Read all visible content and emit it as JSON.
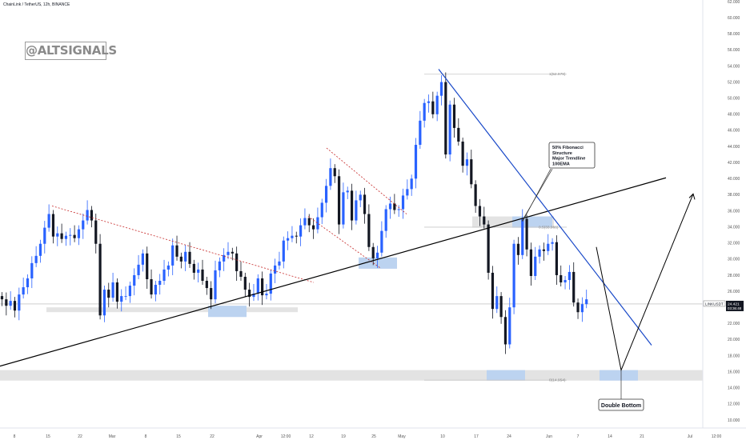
{
  "header": {
    "pair_title": "ChainLink / TetherUS, 12h, BINANCE"
  },
  "watermark": "@ALTSIGNALS",
  "annotations": {
    "confluence": [
      "50% Fibonacci",
      "Structure",
      "Major Trendline",
      "100EMA"
    ],
    "double_bottom": "Double Bottom",
    "fib_top": "1(52.979)",
    "fib_mid": "0.5(33.966)",
    "fib_bottom": "0(14.954)"
  },
  "price_tag": {
    "symbol": "LINKUSDT",
    "price": "24.421",
    "countdown": "03:36:48"
  },
  "colors": {
    "up": "#2962ff",
    "down": "#131722",
    "trendline_blue": "#1848c8",
    "trendline_black": "#000000",
    "zone_gray": "#e3e3e3",
    "zone_blue": "#bcd3f0",
    "dashed_red": "#c62828"
  },
  "chart_data": {
    "type": "candlestick",
    "y_axis": {
      "min": 10,
      "max": 62,
      "step": 2,
      "tick_labels": [
        "62.000",
        "60.000",
        "58.000",
        "56.000",
        "54.000",
        "52.000",
        "50.000",
        "48.000",
        "46.000",
        "44.000",
        "42.000",
        "40.000",
        "38.000",
        "36.000",
        "34.000",
        "32.000",
        "30.000",
        "28.000",
        "26.000",
        "24.000",
        "22.000",
        "20.000",
        "18.000",
        "16.000",
        "14.000",
        "12.000",
        "10.000"
      ]
    },
    "x_axis": {
      "tick_labels": [
        "8",
        "15",
        "22",
        "Mar",
        "8",
        "15",
        "22",
        "Apr",
        "12:00",
        "12",
        "19",
        "25",
        "May",
        "10",
        "17",
        "24",
        "Jun",
        "7",
        "14",
        "21",
        "Jul",
        "12:00"
      ]
    },
    "close_series": [
      25.0,
      24.2,
      24.8,
      23.6,
      25.6,
      26.5,
      27.6,
      29.5,
      30.4,
      31.9,
      33.9,
      35.6,
      32.8,
      33.2,
      32.5,
      32.9,
      33.0,
      32.6,
      33.7,
      34.8,
      36.1,
      34.8,
      31.9,
      23.0,
      26.2,
      25.2,
      27.1,
      24.7,
      25.4,
      25.4,
      26.7,
      28.0,
      29.3,
      30.7,
      27.5,
      25.6,
      26.8,
      27.3,
      28.7,
      29.2,
      31.7,
      30.3,
      29.7,
      30.9,
      29.4,
      28.3,
      28.7,
      27.3,
      26.4,
      25.0,
      28.6,
      29.7,
      30.5,
      30.9,
      30.7,
      28.5,
      27.8,
      26.2,
      25.3,
      25.7,
      27.6,
      25.5,
      25.7,
      28.2,
      29.2,
      29.7,
      32.3,
      32.6,
      32.9,
      32.8,
      34.2,
      35.1,
      34.2,
      33.7,
      35.2,
      37.0,
      39.1,
      41.3,
      40.3,
      34.3,
      38.3,
      38.5,
      34.8,
      37.3,
      38.0,
      35.6,
      31.5,
      30.1,
      30.8,
      33.5,
      36.2,
      36.9,
      36.1,
      36.2,
      37.9,
      38.7,
      40.0,
      44.2,
      47.2,
      49.4,
      49.6,
      48.0,
      50.3,
      52.0,
      43.0,
      49.2,
      46.3,
      44.6,
      41.6,
      42.4,
      39.3,
      36.6,
      35.3,
      34.3,
      28.3,
      23.8,
      25.4,
      22.8,
      19.4,
      24.0,
      31.9,
      30.5,
      35.0,
      31.2,
      27.9,
      30.3,
      31.2,
      31.0,
      31.9,
      32.1,
      28.0,
      27.1,
      27.4,
      28.4,
      24.6,
      23.4,
      24.4,
      25.0
    ],
    "fibonacci": {
      "level_0": 14.954,
      "level_0_5": 33.966,
      "level_1": 52.979
    },
    "current_price": 24.421,
    "support_zone": [
      14.9,
      16.2
    ],
    "projection": [
      31.5,
      16.2,
      38.1
    ]
  }
}
